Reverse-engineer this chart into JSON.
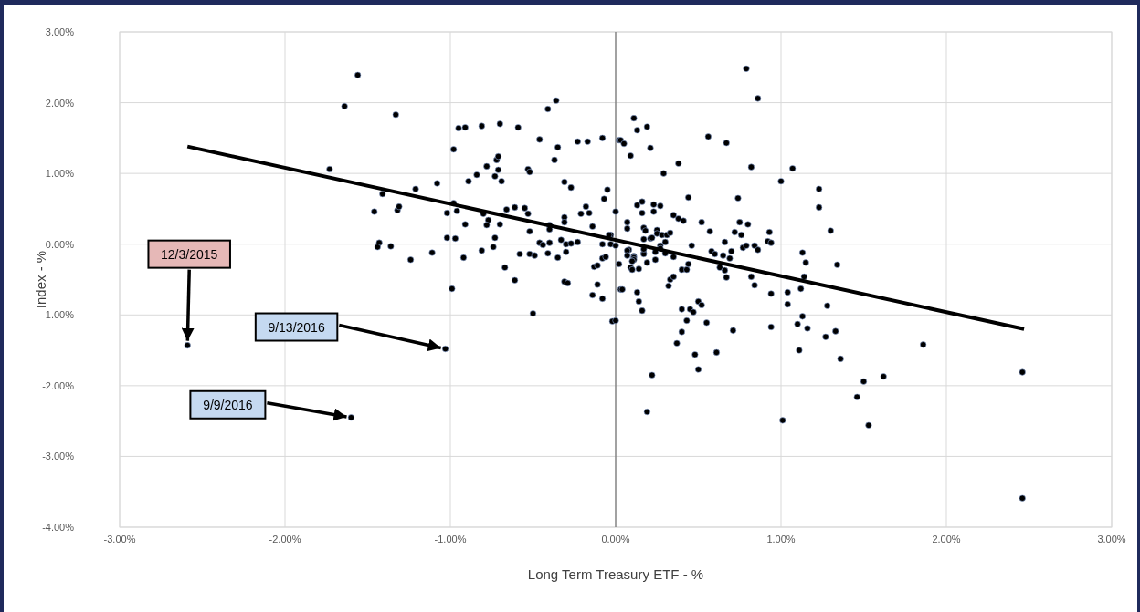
{
  "chart_data": {
    "type": "scatter",
    "xlabel": "Long Term Treasury ETF - %",
    "ylabel": "Index - %",
    "xlim": [
      -3,
      3
    ],
    "ylim": [
      -4,
      3
    ],
    "xticks": [
      {
        "value": -3,
        "label": "-3.00%"
      },
      {
        "value": -2,
        "label": "-2.00%"
      },
      {
        "value": -1,
        "label": "-1.00%"
      },
      {
        "value": 0,
        "label": "0.00%"
      },
      {
        "value": 1,
        "label": "1.00%"
      },
      {
        "value": 2,
        "label": "2.00%"
      },
      {
        "value": 3,
        "label": "3.00%"
      }
    ],
    "yticks": [
      {
        "value": -4,
        "label": "-4.00%"
      },
      {
        "value": -3,
        "label": "-3.00%"
      },
      {
        "value": -2,
        "label": "-2.00%"
      },
      {
        "value": -1,
        "label": "-1.00%"
      },
      {
        "value": 0,
        "label": "0.00%"
      },
      {
        "value": 1,
        "label": "1.00%"
      },
      {
        "value": 2,
        "label": "2.00%"
      },
      {
        "value": 3,
        "label": "3.00%"
      }
    ],
    "grid": true,
    "legend": false,
    "ref_lines": [
      {
        "axis": "x",
        "value": 0,
        "color": "#595959"
      }
    ],
    "annotations": [
      {
        "text": "12/3/2015",
        "x": -2.59,
        "y": -1.43
      },
      {
        "text": "9/13/2016",
        "x": -1.03,
        "y": -1.48
      },
      {
        "text": "9/9/2016",
        "x": -1.6,
        "y": -2.45
      }
    ],
    "series": [
      {
        "marker": "circle",
        "color": "#000000",
        "x": [
          -1.56,
          -1.64,
          -1.33,
          -1.73,
          -0.95,
          -0.91,
          -0.81,
          -0.7,
          -0.59,
          -0.41,
          -0.36,
          -0.46,
          -0.35,
          -0.37,
          -0.23,
          -0.17,
          -0.08,
          0.02,
          -0.98,
          -0.78,
          -0.84,
          -0.72,
          -0.71,
          -0.71,
          -0.73,
          -0.69,
          -0.89,
          -0.53,
          -0.52,
          -0.31,
          -0.27,
          -0.05,
          -0.07,
          -1.08,
          -1.21,
          -1.41,
          -1.46,
          -1.32,
          -1.31,
          -1.02,
          -0.96,
          -0.98,
          -0.91,
          -0.8,
          -0.77,
          -0.78,
          -0.7,
          -0.66,
          -0.61,
          -0.55,
          -0.53,
          -0.52,
          -0.4,
          -0.4,
          -0.31,
          -0.31,
          -0.14,
          -0.18,
          -0.21,
          -0.16,
          0.0,
          -1.02,
          -0.97,
          -1.43,
          -1.44,
          -1.36,
          -1.11,
          -0.73,
          -0.74,
          -0.81,
          -0.46,
          -0.44,
          -0.4,
          -0.33,
          -0.3,
          -0.27,
          -0.23,
          -0.08,
          -0.03,
          -0.03,
          -1.24,
          -0.92,
          -0.67,
          -0.61,
          -0.58,
          -0.52,
          -0.49,
          -0.99,
          -0.5,
          -0.41,
          -0.35,
          -0.3,
          -0.31,
          -0.29,
          -0.13,
          -0.11,
          -0.08,
          -0.06,
          -0.11,
          -0.14,
          -0.08,
          -0.02,
          0.0,
          -1.03,
          -1.6,
          -2.59,
          0.02,
          0.03,
          0.79,
          0.86,
          0.11,
          0.13,
          0.19,
          0.03,
          0.05,
          0.09,
          0.21,
          0.29,
          0.38,
          0.56,
          0.67,
          0.82,
          1.0,
          1.07,
          1.23,
          1.23,
          1.3,
          0.13,
          0.16,
          0.16,
          0.23,
          0.27,
          0.23,
          0.35,
          0.38,
          0.41,
          0.44,
          0.52,
          0.57,
          0.74,
          0.75,
          0.8,
          0.72,
          0.76,
          0.93,
          0.92,
          0.94,
          1.13,
          0.07,
          0.07,
          0.17,
          0.18,
          0.25,
          0.25,
          0.28,
          0.31,
          0.33,
          0.17,
          0.21,
          0.22,
          0.3,
          0.46,
          0.66,
          0.84,
          0.86,
          0.77,
          0.79,
          0.7,
          0.58,
          0.6,
          0.65,
          -0.04,
          0.0,
          0.08,
          0.11,
          0.17,
          0.27,
          0.07,
          0.07,
          0.11,
          0.11,
          0.1,
          0.09,
          0.1,
          0.14,
          0.19,
          0.17,
          0.17,
          0.24,
          0.24,
          0.27,
          0.3,
          0.35,
          0.04,
          0.13,
          0.14,
          0.16,
          0.22,
          0.19,
          0.32,
          0.33,
          0.35,
          0.4,
          0.43,
          0.44,
          0.4,
          0.45,
          0.47,
          0.5,
          0.52,
          0.43,
          0.4,
          0.37,
          0.48,
          0.5,
          0.55,
          0.61,
          0.71,
          0.63,
          0.66,
          0.67,
          0.82,
          0.84,
          0.94,
          0.94,
          1.01,
          1.04,
          1.04,
          1.12,
          1.14,
          1.15,
          1.1,
          1.13,
          1.16,
          1.11,
          1.28,
          1.34,
          1.27,
          1.33,
          1.36,
          1.46,
          1.5,
          1.53,
          1.62,
          1.86,
          2.46,
          2.46,
          0.69
        ],
        "values": [
          2.39,
          1.95,
          1.83,
          1.06,
          1.64,
          1.65,
          1.67,
          1.7,
          1.65,
          1.91,
          2.03,
          1.48,
          1.37,
          1.19,
          1.45,
          1.45,
          1.5,
          1.47,
          1.34,
          1.1,
          0.98,
          1.19,
          1.24,
          1.05,
          0.96,
          0.89,
          0.89,
          1.06,
          1.02,
          0.88,
          0.8,
          0.77,
          0.64,
          0.86,
          0.78,
          0.71,
          0.46,
          0.48,
          0.53,
          0.44,
          0.47,
          0.58,
          0.28,
          0.43,
          0.34,
          0.27,
          0.28,
          0.49,
          0.52,
          0.51,
          0.43,
          0.18,
          0.27,
          0.21,
          0.38,
          0.31,
          0.25,
          0.53,
          0.43,
          0.44,
          0.46,
          0.09,
          0.08,
          0.02,
          -0.04,
          -0.03,
          -0.12,
          0.09,
          -0.04,
          -0.09,
          0.02,
          -0.01,
          0.02,
          0.06,
          0.0,
          0.01,
          0.03,
          0.0,
          0.13,
          0.0,
          -0.22,
          -0.19,
          -0.33,
          -0.51,
          -0.14,
          -0.14,
          -0.16,
          -0.63,
          -0.98,
          -0.13,
          -0.19,
          -0.11,
          -0.53,
          -0.55,
          -0.32,
          -0.3,
          -0.2,
          -0.18,
          -0.57,
          -0.72,
          -0.77,
          -1.09,
          -1.08,
          -1.48,
          -2.45,
          -1.43,
          -0.28,
          -0.64,
          2.48,
          2.06,
          1.78,
          1.61,
          1.66,
          1.47,
          1.42,
          1.25,
          1.36,
          1.0,
          1.14,
          1.52,
          1.43,
          1.09,
          0.89,
          1.07,
          0.78,
          0.52,
          0.19,
          0.55,
          0.6,
          0.44,
          0.56,
          0.54,
          0.46,
          0.41,
          0.36,
          0.33,
          0.66,
          0.31,
          0.18,
          0.65,
          0.31,
          0.28,
          0.17,
          0.13,
          0.17,
          0.04,
          0.02,
          -0.12,
          0.31,
          0.22,
          0.23,
          0.19,
          0.2,
          0.15,
          0.13,
          0.13,
          0.16,
          0.07,
          0.08,
          0.09,
          0.03,
          -0.02,
          0.03,
          -0.02,
          -0.08,
          -0.05,
          -0.02,
          -0.1,
          -0.1,
          -0.14,
          -0.16,
          0.13,
          -0.02,
          -0.08,
          -0.17,
          -0.13,
          -0.02,
          -0.09,
          -0.16,
          -0.19,
          -0.22,
          -0.24,
          -0.33,
          -0.36,
          -0.35,
          -0.26,
          -0.14,
          -0.07,
          -0.22,
          -0.11,
          -0.06,
          -0.13,
          -0.18,
          -0.64,
          -0.68,
          -0.81,
          -0.94,
          -1.85,
          -2.37,
          -0.59,
          -0.5,
          -0.46,
          -0.36,
          -0.36,
          -0.28,
          -0.92,
          -0.92,
          -0.96,
          -0.81,
          -0.86,
          -1.08,
          -1.24,
          -1.4,
          -1.56,
          -1.77,
          -1.11,
          -1.53,
          -1.22,
          -0.33,
          -0.37,
          -0.47,
          -0.46,
          -0.58,
          -0.7,
          -1.17,
          -2.49,
          -0.68,
          -0.85,
          -0.63,
          -0.46,
          -0.26,
          -1.13,
          -1.02,
          -1.19,
          -1.5,
          -0.87,
          -0.29,
          -1.31,
          -1.23,
          -1.62,
          -2.16,
          -1.94,
          -2.56,
          -1.87,
          -1.42,
          -1.81,
          -3.59,
          -0.2
        ]
      },
      {
        "type": "line",
        "color": "#000000",
        "x": [
          -2.59,
          2.47
        ],
        "values": [
          1.38,
          -1.2
        ]
      }
    ]
  }
}
